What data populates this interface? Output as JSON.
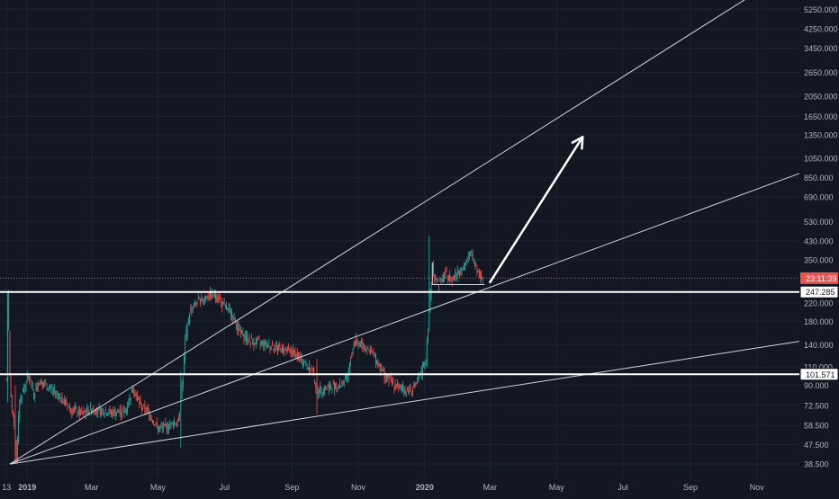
{
  "chart_data": {
    "type": "candlestick",
    "title": "",
    "y_scale": "log",
    "grid": true,
    "colors": {
      "background": "#131722",
      "grid": "#1f2433",
      "axis_text": "#b2b5be",
      "up": "#26a69a",
      "down": "#ef5350",
      "level_line": "#ffffff",
      "trend_line": "#d1d4dc",
      "price_dotted": "#ef5350"
    },
    "x_tick_labels": [
      "13",
      "2019",
      "Mar",
      "May",
      "Jul",
      "Sep",
      "Nov",
      "2020",
      "Mar",
      "May",
      "Jul",
      "Sep",
      "Nov"
    ],
    "y_tick_labels": [
      "5250.000",
      "4250.000",
      "3450.000",
      "2650.000",
      "2050.000",
      "1650.000",
      "1350.000",
      "1050.000",
      "850.000",
      "690.000",
      "530.000",
      "430.000",
      "350.000",
      "220.000",
      "180.000",
      "140.000",
      "110.000",
      "90.000",
      "72.500",
      "58.500",
      "47.500",
      "38.500"
    ],
    "y_tick_values": [
      5250,
      4250,
      3450,
      2650,
      2050,
      1650,
      1350,
      1050,
      850,
      690,
      530,
      430,
      350,
      220,
      180,
      140,
      110,
      90,
      72.5,
      58.5,
      47.5,
      38.5
    ],
    "y_range": [
      33,
      5800
    ],
    "x_range": [
      "2018-12-07",
      "2020-12-10"
    ],
    "price_markers": [
      {
        "label": "23:11:39",
        "value": 287,
        "style": "countdown"
      },
      {
        "label": "247.285",
        "value": 247.285,
        "style": "level"
      },
      {
        "label": "101.571",
        "value": 101.571,
        "style": "level"
      }
    ],
    "horizontal_levels": [
      247.285,
      101.571
    ],
    "trend_lines": [
      {
        "from": [
          "2018-12-16",
          38.5
        ],
        "to": [
          "2020-10-25",
          6000
        ]
      },
      {
        "from": [
          "2018-12-16",
          38.5
        ],
        "to": [
          "2020-12-10",
          890
        ]
      },
      {
        "from": [
          "2018-12-16",
          38.5
        ],
        "to": [
          "2020-12-10",
          145
        ]
      }
    ],
    "triangle": [
      [
        "2020-01-08",
        340
      ],
      [
        "2020-01-08",
        268
      ],
      [
        "2020-02-25",
        268
      ]
    ],
    "arrow": {
      "from": [
        "2020-03-01",
        275
      ],
      "to": [
        "2020-05-25",
        1320
      ]
    },
    "price_path": [
      [
        "2018-12-13",
        95
      ],
      [
        "2018-12-14",
        245
      ],
      [
        "2018-12-15",
        160
      ],
      [
        "2018-12-16",
        100
      ],
      [
        "2018-12-18",
        70
      ],
      [
        "2018-12-20",
        60
      ],
      [
        "2018-12-22",
        40
      ],
      [
        "2018-12-25",
        78
      ],
      [
        "2018-12-28",
        85
      ],
      [
        "2019-01-02",
        100
      ],
      [
        "2019-01-07",
        82
      ],
      [
        "2019-01-12",
        95
      ],
      [
        "2019-01-17",
        90
      ],
      [
        "2019-01-24",
        85
      ],
      [
        "2019-02-01",
        78
      ],
      [
        "2019-02-10",
        70
      ],
      [
        "2019-02-20",
        66
      ],
      [
        "2019-03-01",
        70
      ],
      [
        "2019-03-10",
        68
      ],
      [
        "2019-03-20",
        67
      ],
      [
        "2019-04-01",
        68
      ],
      [
        "2019-04-08",
        88
      ],
      [
        "2019-04-15",
        72
      ],
      [
        "2019-04-22",
        68
      ],
      [
        "2019-05-01",
        56
      ],
      [
        "2019-05-10",
        58
      ],
      [
        "2019-05-16",
        60
      ],
      [
        "2019-05-20",
        62
      ],
      [
        "2019-05-24",
        100
      ],
      [
        "2019-05-26",
        145
      ],
      [
        "2019-05-30",
        200
      ],
      [
        "2019-06-05",
        220
      ],
      [
        "2019-06-15",
        235
      ],
      [
        "2019-06-22",
        240
      ],
      [
        "2019-06-27",
        225
      ],
      [
        "2019-07-01",
        210
      ],
      [
        "2019-07-08",
        195
      ],
      [
        "2019-07-15",
        160
      ],
      [
        "2019-07-25",
        145
      ],
      [
        "2019-08-05",
        142
      ],
      [
        "2019-08-20",
        135
      ],
      [
        "2019-09-01",
        130
      ],
      [
        "2019-09-10",
        118
      ],
      [
        "2019-09-20",
        105
      ],
      [
        "2019-09-24",
        85
      ],
      [
        "2019-10-05",
        88
      ],
      [
        "2019-10-15",
        90
      ],
      [
        "2019-10-22",
        98
      ],
      [
        "2019-10-28",
        145
      ],
      [
        "2019-11-05",
        140
      ],
      [
        "2019-11-15",
        125
      ],
      [
        "2019-11-25",
        100
      ],
      [
        "2019-12-05",
        90
      ],
      [
        "2019-12-15",
        85
      ],
      [
        "2019-12-22",
        88
      ],
      [
        "2019-12-28",
        100
      ],
      [
        "2020-01-02",
        120
      ],
      [
        "2020-01-05",
        200
      ],
      [
        "2020-01-08",
        330
      ],
      [
        "2020-01-10",
        290
      ],
      [
        "2020-01-14",
        270
      ],
      [
        "2020-01-20",
        300
      ],
      [
        "2020-01-26",
        285
      ],
      [
        "2020-02-01",
        310
      ],
      [
        "2020-02-07",
        330
      ],
      [
        "2020-02-12",
        375
      ],
      [
        "2020-02-16",
        340
      ],
      [
        "2020-02-20",
        300
      ],
      [
        "2020-02-23",
        287
      ]
    ],
    "spikes": [
      {
        "date": "2018-12-14",
        "high": 248,
        "low": 75
      },
      {
        "date": "2018-12-21",
        "high": 90,
        "low": 39
      },
      {
        "date": "2019-05-22",
        "high": 105,
        "low": 46
      },
      {
        "date": "2019-09-24",
        "high": 120,
        "low": 66
      },
      {
        "date": "2020-01-05",
        "high": 455,
        "low": 160
      }
    ]
  }
}
